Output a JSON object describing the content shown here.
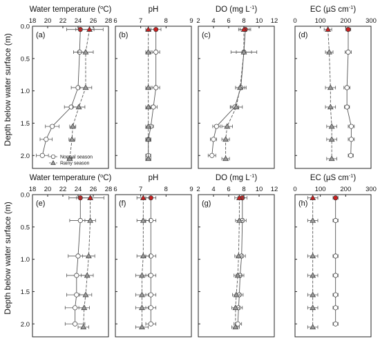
{
  "figure": {
    "ylabel": "Depth below water surface (m)",
    "legend": {
      "normal": "Normal season",
      "rainy": "Rainy season",
      "location": "panel (a), lower-right"
    },
    "depth_ticks": [
      "0.0",
      "0.5",
      "1.0",
      "1.5",
      "2.0"
    ]
  },
  "colors": {
    "surface_marker": "#cc1f1f",
    "open_marker": "#ffffff",
    "rainy_marker": "#9a9a9a",
    "line": "#555555"
  },
  "chart_data": [
    {
      "type": "line",
      "panel_label": "(a)",
      "row": 0,
      "col": 0,
      "title": "Water temperature (°C)",
      "title_main": "Water temperature (",
      "title_sup": "o",
      "title_end": "C)",
      "xlim": [
        18,
        28
      ],
      "xticks": [
        18,
        20,
        22,
        24,
        26,
        28
      ],
      "series": [
        {
          "name": "Normal season",
          "depth": [
            0.05,
            0.4,
            0.95,
            1.25,
            1.55,
            1.75,
            2.0
          ],
          "values": [
            24.3,
            24.2,
            24.0,
            23.1,
            20.6,
            19.8,
            19.3
          ],
          "err": [
            1.8,
            0.8,
            0.9,
            0.9,
            0.9,
            0.8,
            0.8
          ]
        },
        {
          "name": "Rainy season",
          "depth": [
            0.05,
            0.4,
            0.95,
            1.25,
            1.55,
            1.75,
            2.05
          ],
          "values": [
            25.5,
            25.0,
            25.0,
            24.1,
            23.3,
            23.2,
            22.9
          ],
          "err": [
            1.8,
            1.0,
            0.8,
            0.8,
            0.4,
            0.4,
            0.3
          ]
        }
      ]
    },
    {
      "type": "line",
      "panel_label": "(b)",
      "row": 0,
      "col": 1,
      "title": "pH",
      "title_main": "pH",
      "title_sup": "",
      "title_end": "",
      "xlim": [
        6,
        9
      ],
      "xticks": [
        6,
        7,
        8,
        9
      ],
      "series": [
        {
          "name": "Normal season",
          "depth": [
            0.05,
            0.4,
            0.95,
            1.25,
            1.55,
            1.75,
            2.0
          ],
          "values": [
            7.6,
            7.6,
            7.6,
            7.5,
            7.4,
            7.3,
            7.3
          ],
          "err": [
            0.2,
            0.15,
            0.15,
            0.15,
            0.1,
            0.1,
            0.1
          ]
        },
        {
          "name": "Rainy season",
          "depth": [
            0.05,
            0.4,
            0.95,
            1.25,
            1.55,
            1.75,
            2.05
          ],
          "values": [
            7.3,
            7.3,
            7.3,
            7.3,
            7.3,
            7.3,
            7.3
          ],
          "err": [
            0.1,
            0.1,
            0.1,
            0.1,
            0.1,
            0.1,
            0.1
          ]
        }
      ]
    },
    {
      "type": "line",
      "panel_label": "(c)",
      "row": 0,
      "col": 2,
      "title": "DO (mg L⁻¹)",
      "title_main": "DO (mg L",
      "title_sup": "-1",
      "title_end": ")",
      "xlim": [
        2,
        12
      ],
      "xticks": [
        2,
        4,
        6,
        8,
        10,
        12
      ],
      "series": [
        {
          "name": "Normal season",
          "depth": [
            0.05,
            0.4,
            0.95,
            1.25,
            1.55,
            1.75,
            2.0
          ],
          "values": [
            8.2,
            8.0,
            7.6,
            6.8,
            4.4,
            4.0,
            3.8
          ],
          "err": [
            0.7,
            1.0,
            0.7,
            0.5,
            0.5,
            0.4,
            0.5
          ]
        },
        {
          "name": "Rainy season",
          "depth": [
            0.05,
            0.4,
            0.95,
            1.25,
            1.55,
            1.75,
            2.05
          ],
          "values": [
            8.0,
            8.0,
            7.5,
            7.0,
            5.8,
            5.6,
            5.6
          ],
          "err": [
            0.7,
            1.7,
            0.6,
            0.8,
            0.7,
            0.5,
            0.5
          ]
        }
      ]
    },
    {
      "type": "line",
      "panel_label": "(d)",
      "row": 0,
      "col": 3,
      "title": "EC (µS cm⁻¹)",
      "title_main": "EC (",
      "title_mu": "µ",
      "title_s": "S cm",
      "title_sup": "-1",
      "title_end": ")",
      "xlim": [
        0,
        300
      ],
      "xticks": [
        0,
        100,
        200,
        300
      ],
      "series": [
        {
          "name": "Normal season",
          "depth": [
            0.05,
            0.4,
            0.95,
            1.25,
            1.55,
            1.75,
            2.0
          ],
          "values": [
            210,
            210,
            205,
            205,
            222,
            222,
            220
          ],
          "err": [
            10,
            12,
            12,
            10,
            12,
            12,
            10
          ]
        },
        {
          "name": "Rainy season",
          "depth": [
            0.05,
            0.4,
            0.95,
            1.25,
            1.55,
            1.75,
            2.05
          ],
          "values": [
            130,
            135,
            140,
            140,
            145,
            145,
            145
          ],
          "err": [
            15,
            15,
            20,
            20,
            20,
            20,
            20
          ]
        }
      ]
    },
    {
      "type": "line",
      "panel_label": "(e)",
      "row": 1,
      "col": 0,
      "title": "Water temperature (°C)",
      "title_main": "Water temperature (",
      "title_sup": "o",
      "title_end": "C)",
      "xlim": [
        18,
        28
      ],
      "xticks": [
        18,
        20,
        22,
        24,
        26,
        28
      ],
      "series": [
        {
          "name": "Normal season",
          "depth": [
            0.05,
            0.4,
            0.95,
            1.25,
            1.55,
            1.75,
            2.0
          ],
          "values": [
            24.3,
            24.3,
            24.0,
            23.8,
            23.8,
            23.6,
            23.6
          ],
          "err": [
            1.5,
            1.4,
            1.3,
            1.3,
            1.3,
            1.3,
            1.3
          ]
        },
        {
          "name": "Rainy season",
          "depth": [
            0.05,
            0.4,
            0.95,
            1.25,
            1.55,
            1.75,
            2.05
          ],
          "values": [
            25.6,
            25.6,
            25.4,
            25.2,
            25.0,
            24.8,
            24.7
          ],
          "err": [
            1.8,
            0.7,
            0.8,
            0.8,
            0.8,
            0.7,
            0.7
          ]
        }
      ]
    },
    {
      "type": "line",
      "panel_label": "(f)",
      "row": 1,
      "col": 1,
      "title": "pH",
      "title_main": "pH",
      "title_sup": "",
      "title_end": "",
      "xlim": [
        6,
        9
      ],
      "xticks": [
        6,
        7,
        8,
        9
      ],
      "series": [
        {
          "name": "Normal season",
          "depth": [
            0.05,
            0.4,
            0.95,
            1.25,
            1.55,
            1.75,
            2.0
          ],
          "values": [
            7.4,
            7.4,
            7.4,
            7.4,
            7.4,
            7.4,
            7.4
          ],
          "err": [
            0.2,
            0.2,
            0.2,
            0.2,
            0.2,
            0.2,
            0.2
          ]
        },
        {
          "name": "Rainy season",
          "depth": [
            0.05,
            0.4,
            0.95,
            1.25,
            1.55,
            1.75,
            2.05
          ],
          "values": [
            7.1,
            7.1,
            7.1,
            7.05,
            7.05,
            7.05,
            7.05
          ],
          "err": [
            0.25,
            0.25,
            0.25,
            0.25,
            0.25,
            0.25,
            0.25
          ]
        }
      ]
    },
    {
      "type": "line",
      "panel_label": "(g)",
      "row": 1,
      "col": 2,
      "title": "DO (mg L⁻¹)",
      "title_main": "DO (mg L",
      "title_sup": "-1",
      "title_end": ")",
      "xlim": [
        2,
        12
      ],
      "xticks": [
        2,
        4,
        6,
        8,
        10,
        12
      ],
      "series": [
        {
          "name": "Normal season",
          "depth": [
            0.05,
            0.4,
            0.95,
            1.25,
            1.55,
            1.75,
            2.0
          ],
          "values": [
            7.8,
            7.8,
            7.7,
            7.5,
            7.4,
            7.3,
            7.2
          ],
          "err": [
            0.6,
            0.5,
            0.5,
            0.5,
            0.5,
            0.5,
            0.5
          ]
        },
        {
          "name": "Rainy season",
          "depth": [
            0.05,
            0.4,
            0.95,
            1.25,
            1.55,
            1.75,
            2.05
          ],
          "values": [
            7.4,
            7.4,
            7.3,
            7.2,
            7.0,
            6.9,
            6.9
          ],
          "err": [
            0.6,
            0.5,
            0.5,
            0.5,
            0.5,
            0.5,
            0.5
          ]
        }
      ]
    },
    {
      "type": "line",
      "panel_label": "(h)",
      "row": 1,
      "col": 3,
      "title": "EC (µS cm⁻¹)",
      "title_main": "EC (",
      "title_mu": "µ",
      "title_s": "S cm",
      "title_sup": "-1",
      "title_end": ")",
      "xlim": [
        0,
        300
      ],
      "xticks": [
        0,
        100,
        200,
        300
      ],
      "series": [
        {
          "name": "Normal season",
          "depth": [
            0.05,
            0.4,
            0.95,
            1.25,
            1.55,
            1.75,
            2.0
          ],
          "values": [
            160,
            160,
            160,
            160,
            160,
            160,
            160
          ],
          "err": [
            10,
            10,
            10,
            10,
            10,
            10,
            10
          ]
        },
        {
          "name": "Rainy season",
          "depth": [
            0.05,
            0.4,
            0.95,
            1.25,
            1.55,
            1.75,
            2.05
          ],
          "values": [
            70,
            70,
            70,
            70,
            70,
            70,
            70
          ],
          "err": [
            20,
            20,
            20,
            20,
            20,
            20,
            20
          ]
        }
      ]
    }
  ]
}
